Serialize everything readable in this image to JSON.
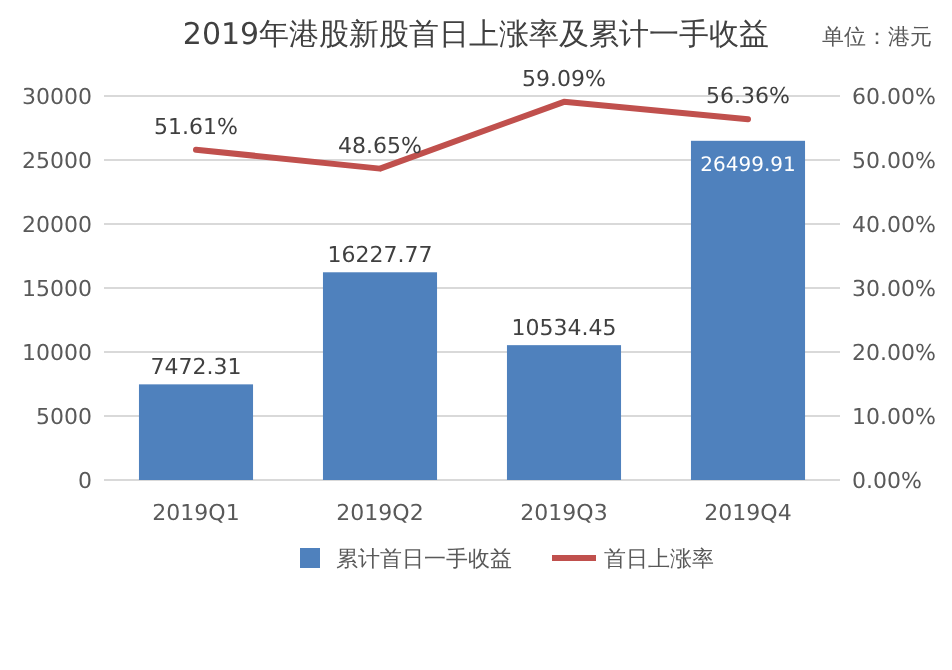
{
  "chart_data": {
    "type": "bar",
    "title": "2019年港股新股首日上涨率及累计一手收益",
    "annotations": [
      "单位：港元"
    ],
    "categories": [
      "2019Q1",
      "2019Q2",
      "2019Q3",
      "2019Q4"
    ],
    "series": [
      {
        "name": "累计首日一手收益",
        "color": "#4f81bd",
        "values": [
          7472.31,
          16227.77,
          10534.45,
          26499.91
        ],
        "value_labels": [
          "7472.31",
          "16227.77",
          "10534.45",
          "26499.91"
        ]
      },
      {
        "name": "首日上涨率",
        "type": "line",
        "axis": "y2",
        "color": "#c0504d",
        "values": [
          51.61,
          48.65,
          59.09,
          56.36
        ],
        "value_labels": [
          "51.61%",
          "48.65%",
          "59.09%",
          "56.36%"
        ]
      }
    ],
    "ylim": [
      0,
      30000
    ],
    "yticks": [
      0,
      5000,
      10000,
      15000,
      20000,
      25000,
      30000
    ],
    "y2lim": [
      0,
      60
    ],
    "y2ticks": [
      {
        "value": 0,
        "label": "0.00%"
      },
      {
        "value": 10,
        "label": "10.00%"
      },
      {
        "value": 20,
        "label": "20.00%"
      },
      {
        "value": 30,
        "label": "30.00%"
      },
      {
        "value": 40,
        "label": "40.00%"
      },
      {
        "value": 50,
        "label": "50.00%"
      },
      {
        "value": 60,
        "label": "60.00%"
      }
    ],
    "grid": "y",
    "legend": "bottom",
    "marker": "none"
  }
}
